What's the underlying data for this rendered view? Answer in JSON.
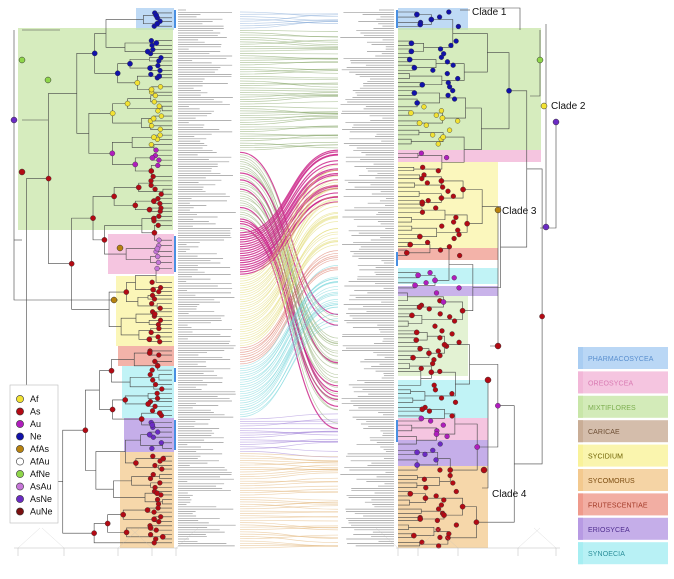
{
  "clade_labels": [
    "Clade 1",
    "Clade 2",
    "Clade 3",
    "Clade 4"
  ],
  "region_legend": [
    {
      "code": "Af",
      "color": "#f2e233"
    },
    {
      "code": "As",
      "color": "#b30a14"
    },
    {
      "code": "Au",
      "color": "#b01dbd"
    },
    {
      "code": "Ne",
      "color": "#1111aa"
    },
    {
      "code": "AfAs",
      "color": "#b8820f"
    },
    {
      "code": "AfAu",
      "color": "#ffffff"
    },
    {
      "code": "AfNe",
      "color": "#8fd64a"
    },
    {
      "code": "AsAu",
      "color": "#c676d8"
    },
    {
      "code": "AsNe",
      "color": "#6b2bc4"
    },
    {
      "code": "AuNe",
      "color": "#7a1010"
    }
  ],
  "section_legend": [
    {
      "name": "PHARMACOSYCEA",
      "color": "#a9cdf2",
      "text_color": "#5a8fcf"
    },
    {
      "name": "OREOSYCEA",
      "color": "#f2b7d8",
      "text_color": "#d97ab2"
    },
    {
      "name": "MIXTIFLORES",
      "color": "#c8e6a8",
      "text_color": "#7cae4f"
    },
    {
      "name": "CARICAE",
      "color": "#c9ad96",
      "text_color": "#6e4f35"
    },
    {
      "name": "SYCIDIUM",
      "color": "#f9f29a",
      "text_color": "#6d6100"
    },
    {
      "name": "SYCOMORUS",
      "color": "#f3c98e",
      "text_color": "#7a4a0e"
    },
    {
      "name": "FRUTESCENTIAE",
      "color": "#ef9a8c",
      "text_color": "#a33b28"
    },
    {
      "name": "ERIOSYCEA",
      "color": "#b79ae3",
      "text_color": "#4f2d8f"
    },
    {
      "name": "SYNOECIA",
      "color": "#a6eef2",
      "text_color": "#2c8f9a"
    }
  ]
}
